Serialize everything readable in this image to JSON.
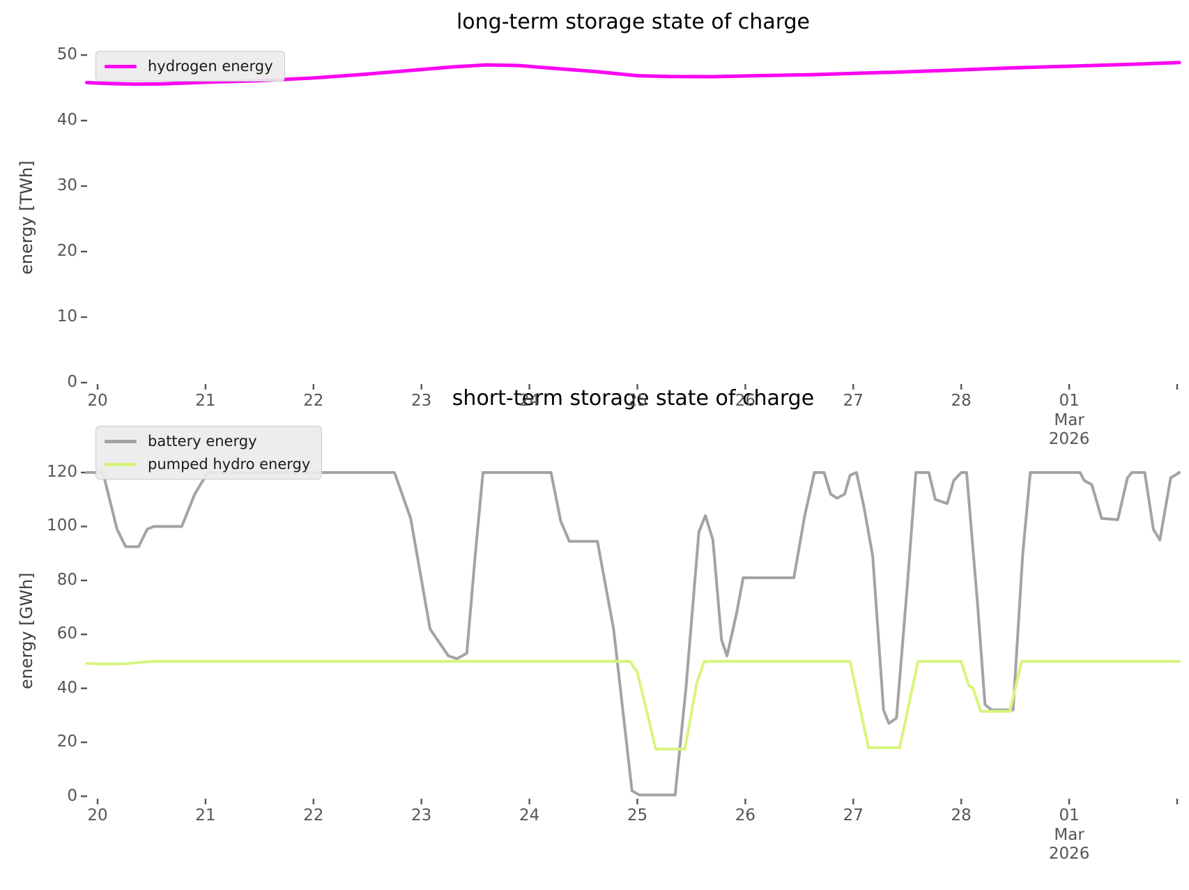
{
  "figure": {
    "background": "#ffffff"
  },
  "text_colors": {
    "title": "#000000",
    "tick_labels": "#555555",
    "axis_labels": "#3f3f3f"
  },
  "chart_data": [
    {
      "type": "line",
      "title": "long-term storage state of charge",
      "xlabel": "",
      "ylabel": "energy [TWh]",
      "ylim": [
        0,
        50
      ],
      "y_ticks": [
        0,
        10,
        20,
        30,
        40,
        50
      ],
      "x_ticks": [
        {
          "x": 20,
          "label": "20"
        },
        {
          "x": 21,
          "label": "21"
        },
        {
          "x": 22,
          "label": "22"
        },
        {
          "x": 23,
          "label": "23"
        },
        {
          "x": 24,
          "label": "24"
        },
        {
          "x": 25,
          "label": "25"
        },
        {
          "x": 26,
          "label": "26"
        },
        {
          "x": 27,
          "label": "27"
        },
        {
          "x": 28,
          "label": "28"
        },
        {
          "x": 29,
          "label": "01\nMar\n2026"
        },
        {
          "x": 30,
          "label": ""
        }
      ],
      "x_axis_note": "x in days; 20–28 = Feb 2026, 29 = Mar 01 2026, 30 = Mar 02 2026",
      "grid": false,
      "legend_position": "upper left",
      "series": [
        {
          "name": "hydrogen energy",
          "color": "#fb00f2",
          "line_width": 5,
          "points": [
            [
              19.9,
              45.8
            ],
            [
              20.1,
              45.65
            ],
            [
              20.35,
              45.55
            ],
            [
              20.6,
              45.6
            ],
            [
              21.0,
              45.85
            ],
            [
              21.5,
              46.1
            ],
            [
              22.0,
              46.5
            ],
            [
              22.5,
              47.1
            ],
            [
              23.0,
              47.8
            ],
            [
              23.3,
              48.2
            ],
            [
              23.6,
              48.5
            ],
            [
              23.9,
              48.4
            ],
            [
              24.2,
              48.0
            ],
            [
              24.6,
              47.5
            ],
            [
              25.0,
              46.85
            ],
            [
              25.3,
              46.72
            ],
            [
              25.7,
              46.7
            ],
            [
              26.1,
              46.85
            ],
            [
              26.6,
              47.0
            ],
            [
              27.0,
              47.2
            ],
            [
              27.5,
              47.45
            ],
            [
              28.0,
              47.75
            ],
            [
              28.5,
              48.05
            ],
            [
              29.0,
              48.3
            ],
            [
              29.5,
              48.55
            ],
            [
              30.02,
              48.85
            ]
          ]
        }
      ]
    },
    {
      "type": "line",
      "title": "short-term storage state of charge",
      "xlabel": "",
      "ylabel": "energy [GWh]",
      "ylim": [
        0,
        120
      ],
      "y_ticks": [
        0,
        20,
        40,
        60,
        80,
        100,
        120
      ],
      "x_ticks": [
        {
          "x": 20,
          "label": "20"
        },
        {
          "x": 21,
          "label": "21"
        },
        {
          "x": 22,
          "label": "22"
        },
        {
          "x": 23,
          "label": "23"
        },
        {
          "x": 24,
          "label": "24"
        },
        {
          "x": 25,
          "label": "25"
        },
        {
          "x": 26,
          "label": "26"
        },
        {
          "x": 27,
          "label": "27"
        },
        {
          "x": 28,
          "label": "28"
        },
        {
          "x": 29,
          "label": "01\nMar\n2026"
        },
        {
          "x": 30,
          "label": ""
        }
      ],
      "x_axis_note": "x in days; 20–28 = Feb 2026, 29 = Mar 01 2026, 30 = Mar 02 2026",
      "grid": false,
      "legend_position": "upper left",
      "series": [
        {
          "name": "battery energy",
          "color": "#a3a3a3",
          "line_width": 4,
          "points": [
            [
              19.9,
              120
            ],
            [
              20.05,
              120
            ],
            [
              20.18,
              99
            ],
            [
              20.26,
              92.5
            ],
            [
              20.38,
              92.5
            ],
            [
              20.46,
              99
            ],
            [
              20.52,
              100
            ],
            [
              20.78,
              100
            ],
            [
              20.9,
              112
            ],
            [
              21.02,
              120
            ],
            [
              22.75,
              120
            ],
            [
              22.9,
              103
            ],
            [
              23.08,
              62
            ],
            [
              23.25,
              52
            ],
            [
              23.33,
              51
            ],
            [
              23.42,
              53
            ],
            [
              23.5,
              90
            ],
            [
              23.57,
              120
            ],
            [
              24.2,
              120
            ],
            [
              24.29,
              102
            ],
            [
              24.37,
              94.5
            ],
            [
              24.63,
              94.5
            ],
            [
              24.78,
              62
            ],
            [
              24.95,
              2
            ],
            [
              25.02,
              0.5
            ],
            [
              25.35,
              0.5
            ],
            [
              25.45,
              40
            ],
            [
              25.57,
              98
            ],
            [
              25.63,
              104
            ],
            [
              25.7,
              95
            ],
            [
              25.78,
              58
            ],
            [
              25.83,
              52
            ],
            [
              25.92,
              68
            ],
            [
              25.98,
              81
            ],
            [
              26.45,
              81
            ],
            [
              26.55,
              104
            ],
            [
              26.64,
              120
            ],
            [
              26.73,
              120
            ],
            [
              26.79,
              112
            ],
            [
              26.85,
              110.5
            ],
            [
              26.92,
              112
            ],
            [
              26.97,
              119
            ],
            [
              27.03,
              120
            ],
            [
              27.1,
              107
            ],
            [
              27.18,
              89
            ],
            [
              27.28,
              32
            ],
            [
              27.33,
              27
            ],
            [
              27.4,
              29
            ],
            [
              27.5,
              78
            ],
            [
              27.58,
              120
            ],
            [
              27.7,
              120
            ],
            [
              27.76,
              110
            ],
            [
              27.87,
              108.5
            ],
            [
              27.93,
              117
            ],
            [
              28.0,
              120
            ],
            [
              28.05,
              120
            ],
            [
              28.15,
              72
            ],
            [
              28.22,
              34
            ],
            [
              28.28,
              32
            ],
            [
              28.48,
              32
            ],
            [
              28.57,
              90
            ],
            [
              28.64,
              120
            ],
            [
              29.1,
              120
            ],
            [
              29.14,
              117
            ],
            [
              29.21,
              115.5
            ],
            [
              29.3,
              103
            ],
            [
              29.45,
              102.5
            ],
            [
              29.54,
              118
            ],
            [
              29.58,
              120
            ],
            [
              29.7,
              120
            ],
            [
              29.78,
              99
            ],
            [
              29.84,
              95
            ],
            [
              29.94,
              118
            ],
            [
              30.02,
              120
            ]
          ]
        },
        {
          "name": "pumped hydro energy",
          "color": "#d6f57e",
          "line_width": 4,
          "points": [
            [
              19.9,
              49.3
            ],
            [
              20.0,
              49.0
            ],
            [
              20.25,
              49.1
            ],
            [
              20.5,
              50
            ],
            [
              24.93,
              50
            ],
            [
              25.0,
              46
            ],
            [
              25.17,
              17.5
            ],
            [
              25.44,
              17.5
            ],
            [
              25.55,
              42
            ],
            [
              25.62,
              50
            ],
            [
              26.97,
              50
            ],
            [
              27.14,
              18
            ],
            [
              27.43,
              18
            ],
            [
              27.6,
              50
            ],
            [
              28.0,
              50
            ],
            [
              28.07,
              41
            ],
            [
              28.11,
              40
            ],
            [
              28.18,
              31.5
            ],
            [
              28.45,
              31.5
            ],
            [
              28.56,
              50
            ],
            [
              30.02,
              50
            ]
          ]
        }
      ]
    }
  ]
}
